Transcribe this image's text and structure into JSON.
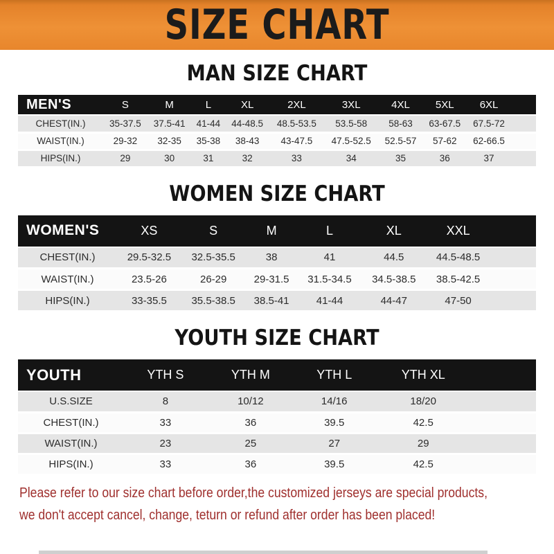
{
  "banner": {
    "title": "SIZE CHART",
    "bg_color": "#E8862C",
    "text_color": "#1B1B1B"
  },
  "sections": [
    {
      "heading": "MAN SIZE CHART",
      "header_label": "MEN'S",
      "columns": [
        "S",
        "M",
        "L",
        "XL",
        "2XL",
        "3XL",
        "4XL",
        "5XL",
        "6XL"
      ],
      "rows": [
        {
          "label": "CHEST(IN.)",
          "values": [
            "35-37.5",
            "37.5-41",
            "41-44",
            "44-48.5",
            "48.5-53.5",
            "53.5-58",
            "58-63",
            "63-67.5",
            "67.5-72"
          ]
        },
        {
          "label": "WAIST(IN.)",
          "values": [
            "29-32",
            "32-35",
            "35-38",
            "38-43",
            "43-47.5",
            "47.5-52.5",
            "52.5-57",
            "57-62",
            "62-66.5"
          ]
        },
        {
          "label": "HIPS(IN.)",
          "values": [
            "29",
            "30",
            "31",
            "32",
            "33",
            "34",
            "35",
            "36",
            "37"
          ]
        }
      ]
    },
    {
      "heading": "WOMEN SIZE CHART",
      "header_label": "WOMEN'S",
      "columns": [
        "XS",
        "S",
        "M",
        "L",
        "XL",
        "XXL"
      ],
      "rows": [
        {
          "label": "CHEST(IN.)",
          "values": [
            "29.5-32.5",
            "32.5-35.5",
            "38",
            "41",
            "44.5",
            "44.5-48.5"
          ]
        },
        {
          "label": "WAIST(IN.)",
          "values": [
            "23.5-26",
            "26-29",
            "29-31.5",
            "31.5-34.5",
            "34.5-38.5",
            "38.5-42.5"
          ]
        },
        {
          "label": "HIPS(IN.)",
          "values": [
            "33-35.5",
            "35.5-38.5",
            "38.5-41",
            "41-44",
            "44-47",
            "47-50"
          ]
        }
      ]
    },
    {
      "heading": "YOUTH SIZE CHART",
      "header_label": "YOUTH",
      "columns": [
        "YTH S",
        "YTH M",
        "YTH L",
        "YTH XL"
      ],
      "rows": [
        {
          "label": "U.S.SIZE",
          "values": [
            "8",
            "10/12",
            "14/16",
            "18/20"
          ]
        },
        {
          "label": "CHEST(IN.)",
          "values": [
            "33",
            "36",
            "39.5",
            "42.5"
          ]
        },
        {
          "label": "WAIST(IN.)",
          "values": [
            "23",
            "25",
            "27",
            "29"
          ]
        },
        {
          "label": "HIPS(IN.)",
          "values": [
            "33",
            "36",
            "39.5",
            "42.5"
          ]
        }
      ]
    }
  ],
  "footer": {
    "lines": [
      "Please refer to our size chart before order,the customized jerseys are special products,",
      "we don't accept cancel, change, teturn or refund after order has been placed!"
    ],
    "text_color": "#9F2F2D"
  },
  "colors": {
    "table_header_bg": "#141414",
    "row_stripe": "#E5E5E5",
    "row_white": "#FBFBFB"
  }
}
